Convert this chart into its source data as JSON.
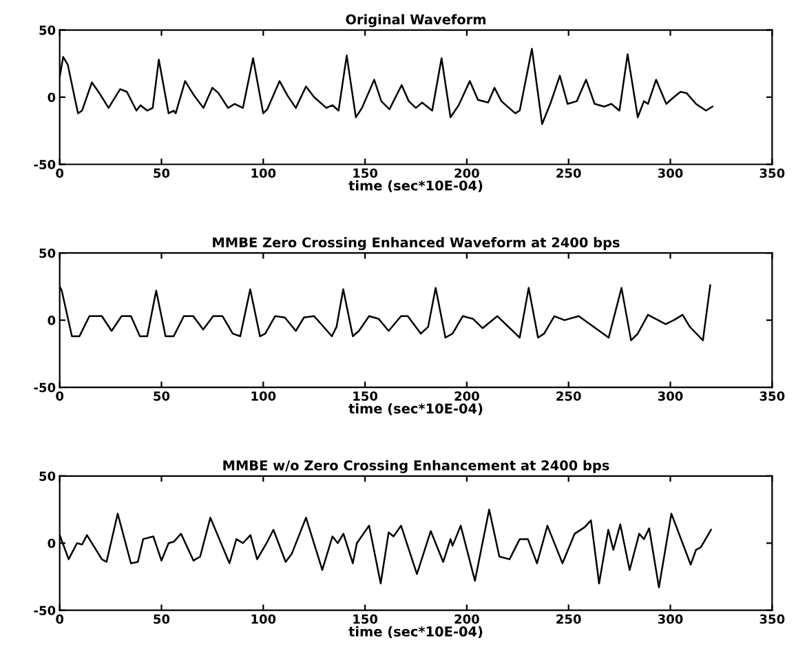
{
  "chart_data": [
    {
      "type": "line",
      "title": "Original Waveform",
      "xlabel": "time (sec*10E-04)",
      "xlim": [
        0,
        350
      ],
      "ylim": [
        -50,
        50
      ],
      "xticks": [
        0,
        50,
        100,
        150,
        200,
        250,
        300,
        350
      ],
      "yticks": [
        -50,
        0,
        50
      ],
      "grid": false,
      "series": [
        {
          "color": "#000000",
          "x": [
            0,
            1.7,
            4,
            7.3,
            9,
            11,
            15.8,
            19.5,
            24,
            29.7,
            33,
            37.7,
            39.7,
            43,
            45.7,
            48.7,
            53.5,
            56,
            57,
            61.6,
            65.7,
            70.6,
            75,
            78,
            82.7,
            86,
            90,
            95,
            100,
            102,
            108,
            112,
            116,
            121,
            125,
            131,
            134,
            137,
            141,
            145.5,
            148.5,
            154.5,
            158,
            162,
            168,
            171.5,
            175,
            178,
            183,
            187.6,
            192,
            196,
            201.5,
            205.5,
            210.5,
            213.6,
            217,
            223.8,
            226,
            232,
            237,
            241,
            245.7,
            249.5,
            254,
            258.6,
            262.8,
            267.6,
            271,
            275,
            279,
            284,
            287,
            289,
            293,
            298,
            301.7,
            305,
            308,
            312.6,
            317.5,
            320.7
          ],
          "values": [
            15,
            30,
            24,
            0,
            -12,
            -10,
            11,
            3,
            -8,
            6,
            4,
            -10,
            -6,
            -10,
            -8,
            28,
            -12,
            -10,
            -12,
            12,
            2,
            -8,
            7,
            3,
            -8,
            -5,
            -8,
            29,
            -12,
            -9,
            12,
            1,
            -8,
            8,
            0,
            -8,
            -6,
            -10,
            31,
            -15,
            -8,
            13,
            -3,
            -9,
            9,
            -3,
            -8,
            -4,
            -10,
            29,
            -15,
            -6,
            12,
            -2,
            -4,
            7,
            -3,
            -12,
            -10,
            36,
            -20,
            -5,
            16,
            -5,
            -3,
            13,
            -5,
            -7,
            -5,
            -10,
            32,
            -15,
            -3,
            -5,
            13,
            -5,
            0,
            4,
            3,
            -5,
            -10,
            -7
          ]
        }
      ]
    },
    {
      "type": "line",
      "title": "MMBE Zero Crossing Enhanced Waveform at 2400 bps",
      "xlabel": "time (sec*10E-04)",
      "xlim": [
        0,
        350
      ],
      "ylim": [
        -50,
        50
      ],
      "xticks": [
        0,
        50,
        100,
        150,
        200,
        250,
        300,
        350
      ],
      "yticks": [
        -50,
        0,
        50
      ],
      "grid": false,
      "series": [
        {
          "color": "#000000",
          "x": [
            0,
            1,
            6,
            9.7,
            14.6,
            20.7,
            25.5,
            30.4,
            35,
            39.4,
            43,
            47.4,
            52,
            56,
            61,
            65.6,
            70.5,
            75.4,
            80,
            85,
            88.7,
            93.6,
            98.4,
            101,
            105.8,
            110.6,
            116,
            120,
            125,
            133.7,
            136,
            139.3,
            144,
            147,
            152,
            156.7,
            161.6,
            167.7,
            171,
            177.4,
            181,
            184.7,
            189.5,
            193,
            198,
            203,
            207.8,
            215,
            226,
            230.4,
            235,
            238,
            243,
            248,
            255,
            269.7,
            276,
            280.7,
            284,
            289,
            294,
            297.7,
            301.7,
            306,
            309.6,
            316,
            319.6
          ],
          "values": [
            25,
            22,
            -12,
            -12,
            3,
            3,
            -8,
            3,
            3,
            -12,
            -12,
            22,
            -12,
            -12,
            3,
            3,
            -7,
            3,
            3,
            -10,
            -12,
            23,
            -12,
            -10,
            3,
            2,
            -8,
            2,
            3,
            -12,
            -5,
            23,
            -12,
            -8,
            3,
            1,
            -8,
            3,
            3,
            -10,
            -5,
            24,
            -13,
            -10,
            3,
            1,
            -6,
            3,
            -13,
            24,
            -13,
            -10,
            3,
            0,
            3,
            -13,
            24,
            -15,
            -10,
            4,
            0,
            -3,
            0,
            4,
            -5,
            -15,
            26
          ]
        }
      ]
    },
    {
      "type": "line",
      "title": "MMBE w/o Zero Crossing Enhancement at 2400 bps",
      "xlabel": "time (sec*10E-04)",
      "xlim": [
        0,
        350
      ],
      "ylim": [
        -50,
        50
      ],
      "xticks": [
        0,
        50,
        100,
        150,
        200,
        250,
        300,
        350
      ],
      "yticks": [
        -50,
        0,
        50
      ],
      "grid": false,
      "series": [
        {
          "color": "#000000",
          "x": [
            0,
            4.4,
            8.5,
            11,
            13.4,
            20.7,
            23,
            28.5,
            35,
            38.4,
            41,
            46,
            50,
            53.5,
            56,
            59.6,
            65.7,
            69,
            74,
            83.4,
            86.8,
            90,
            93.7,
            97,
            102,
            105,
            111,
            114,
            121,
            129,
            134,
            136.6,
            139.4,
            144,
            146,
            152,
            157.7,
            161.6,
            164,
            167.7,
            175.5,
            182.3,
            188.4,
            192,
            193,
            197,
            204,
            211,
            216,
            221,
            226,
            230,
            234.5,
            239.6,
            247,
            253,
            258,
            261,
            265,
            269.5,
            272,
            275.4,
            280,
            284.7,
            287,
            289.6,
            294.4,
            300.5,
            310,
            312.6,
            315,
            320
          ],
          "values": [
            6,
            -12,
            0,
            -1,
            6,
            -12,
            -14,
            22,
            -15,
            -14,
            3,
            5,
            -13,
            0,
            1,
            7,
            -13,
            -10,
            19,
            -15,
            3,
            0,
            6,
            -12,
            1,
            10,
            -14,
            -8,
            19,
            -20,
            5,
            0,
            7,
            -15,
            0,
            13,
            -30,
            8,
            5,
            13,
            -23,
            9,
            -14,
            3,
            -2,
            13,
            -28,
            25,
            -10,
            -12,
            3,
            3,
            -15,
            13,
            -15,
            7,
            12,
            17,
            -30,
            10,
            -5,
            14,
            -20,
            7,
            3,
            11,
            -33,
            22,
            -16,
            -5,
            -3,
            10
          ]
        }
      ]
    }
  ]
}
